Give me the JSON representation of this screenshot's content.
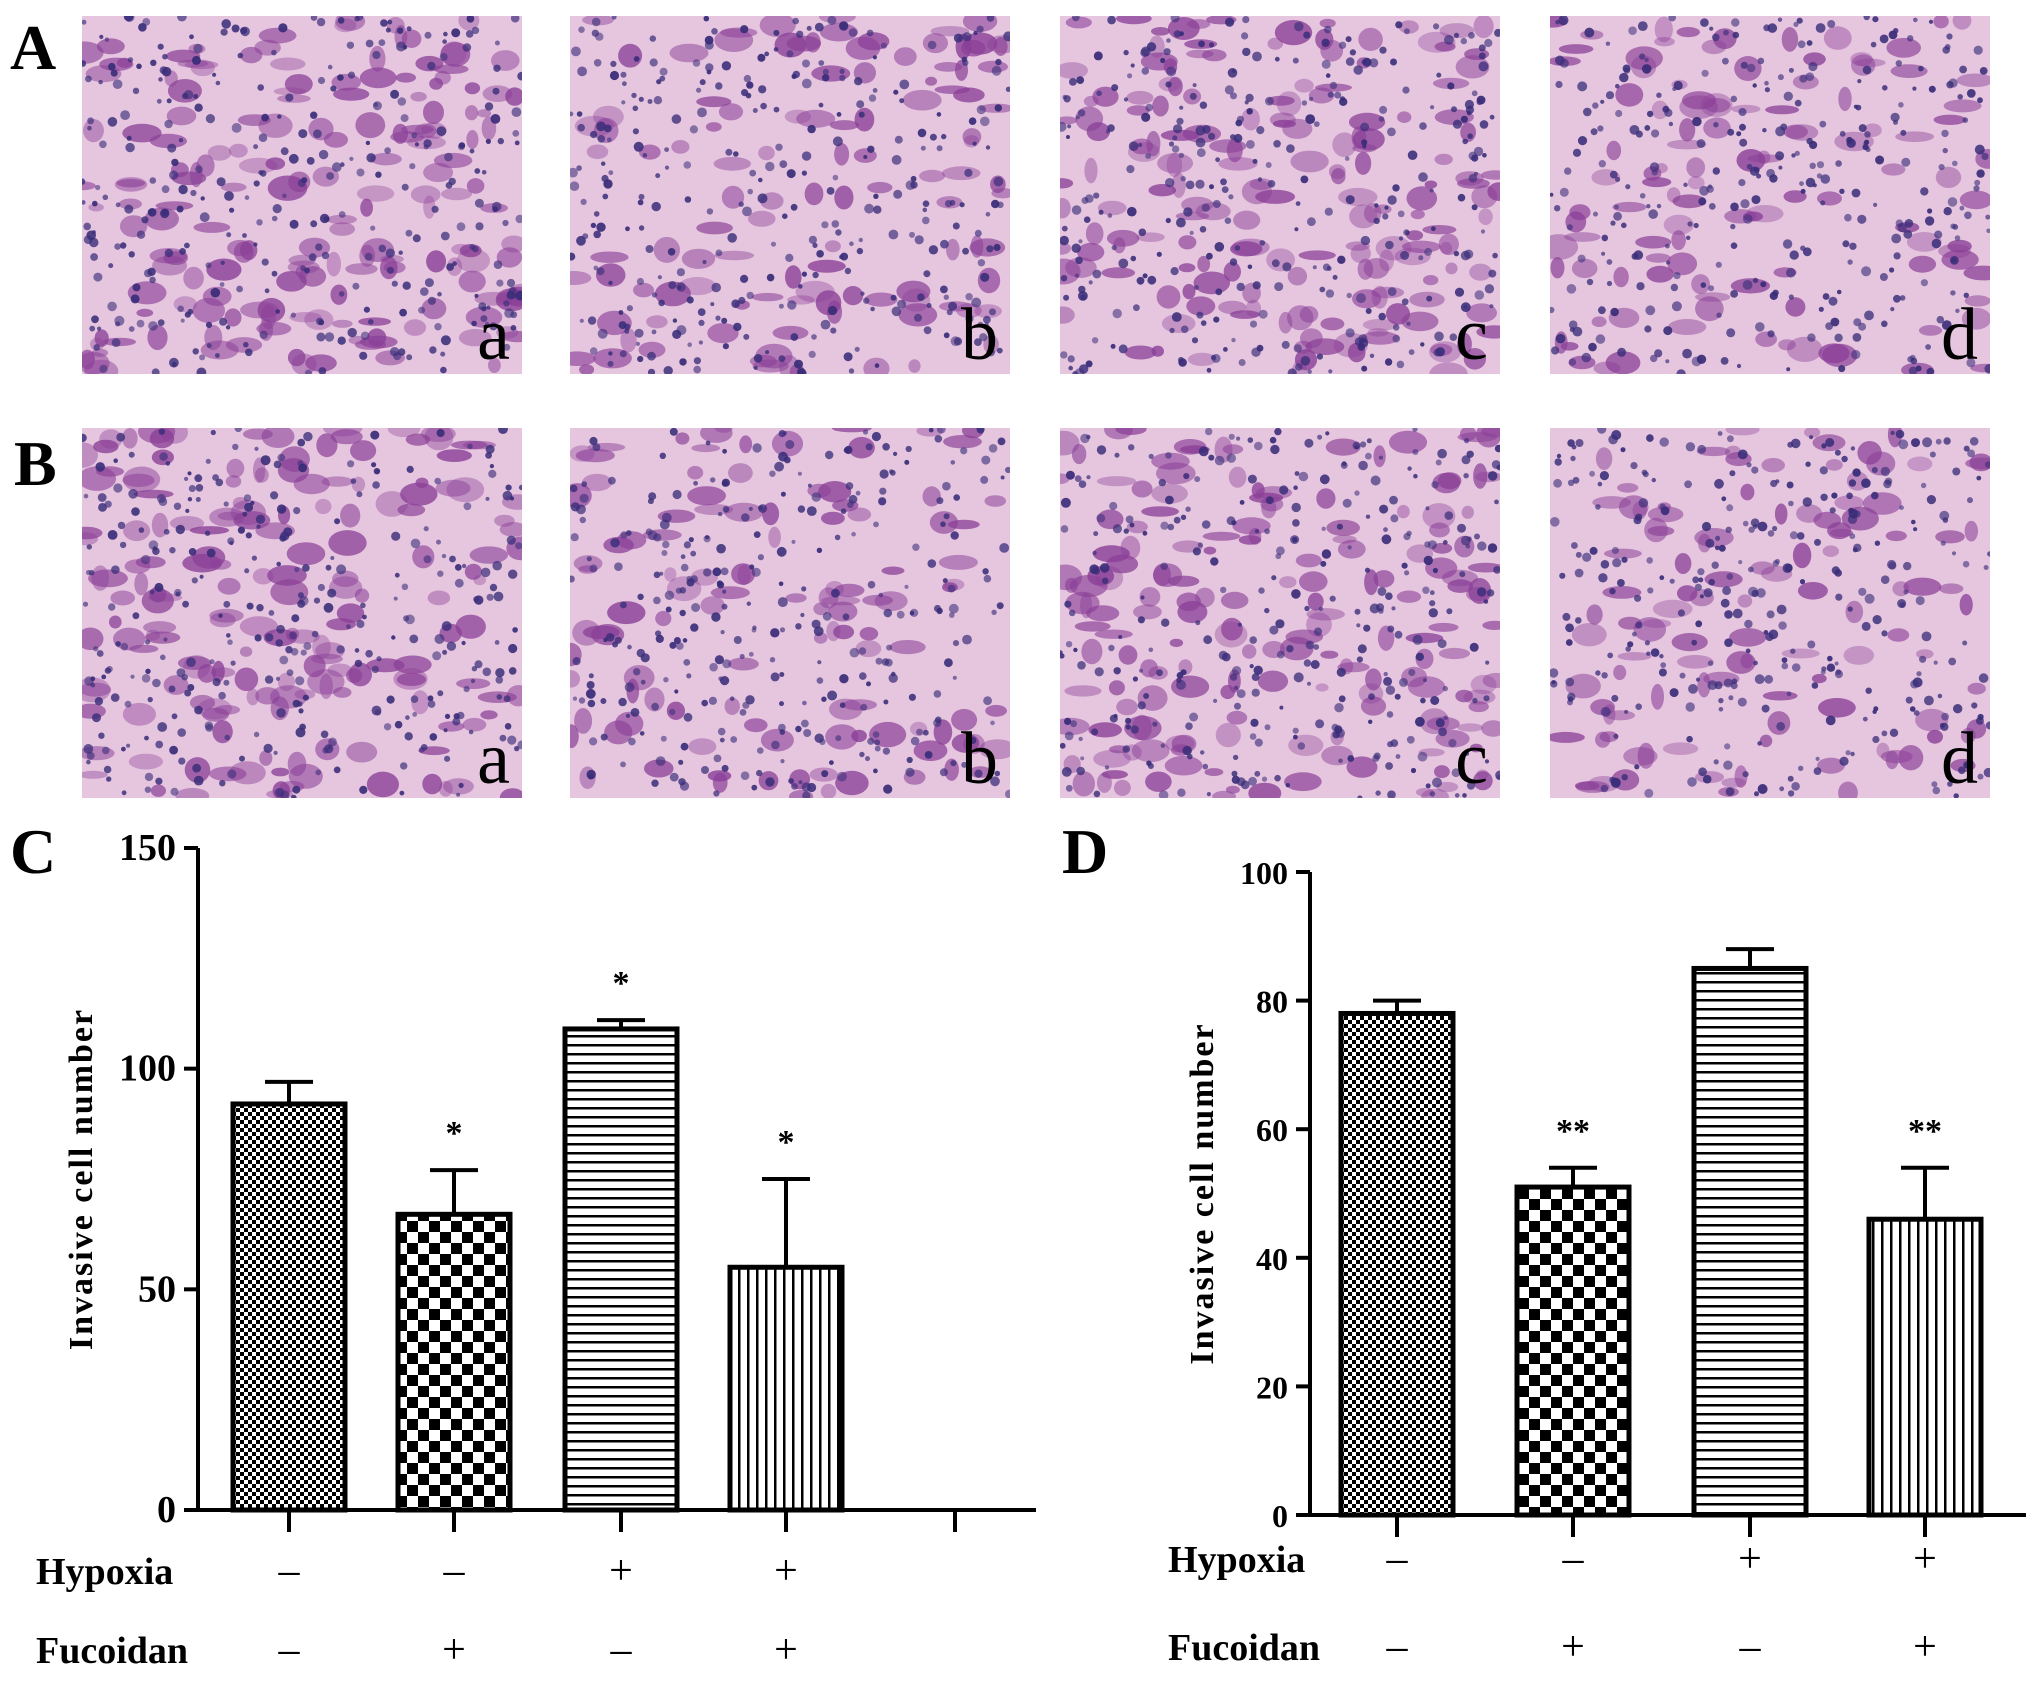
{
  "panels": {
    "A": {
      "letter": "A",
      "images": [
        "a",
        "b",
        "c",
        "d"
      ]
    },
    "B": {
      "letter": "B",
      "images": [
        "a",
        "b",
        "c",
        "d"
      ]
    },
    "C": {
      "letter": "C"
    },
    "D": {
      "letter": "D"
    }
  },
  "colors": {
    "stain_background": "#e6c6df",
    "stain_cell": "#8a3f97",
    "stain_nucleus": "#3a2d79",
    "bar_stroke": "#000000"
  },
  "chart_data": [
    {
      "id": "C",
      "type": "bar",
      "ylabel": "Invasive cell number",
      "ylim": [
        0,
        150
      ],
      "yticks": [
        "0",
        "50",
        "100",
        "150"
      ],
      "bars": [
        {
          "value": 92,
          "error": 5,
          "pattern": "fine-checker",
          "sig": ""
        },
        {
          "value": 67,
          "error": 10,
          "pattern": "checker",
          "sig": "*"
        },
        {
          "value": 109,
          "error": 2,
          "pattern": "horizontal-lines",
          "sig": "*"
        },
        {
          "value": 55,
          "error": 20,
          "pattern": "vertical-lines",
          "sig": "*"
        }
      ],
      "extra_tick": true,
      "conditions": [
        {
          "label": "Hypoxia",
          "values": [
            "–",
            "–",
            "+",
            "+"
          ]
        },
        {
          "label": "Fucoidan",
          "values": [
            "–",
            "+",
            "–",
            "+"
          ]
        }
      ]
    },
    {
      "id": "D",
      "type": "bar",
      "ylabel": "Invasive cell number",
      "ylim": [
        0,
        100
      ],
      "yticks": [
        "0",
        "20",
        "40",
        "60",
        "80",
        "100"
      ],
      "bars": [
        {
          "value": 78,
          "error": 2,
          "pattern": "fine-checker",
          "sig": ""
        },
        {
          "value": 51,
          "error": 3,
          "pattern": "checker",
          "sig": "**"
        },
        {
          "value": 85,
          "error": 3,
          "pattern": "horizontal-lines",
          "sig": ""
        },
        {
          "value": 46,
          "error": 8,
          "pattern": "vertical-lines",
          "sig": "**"
        }
      ],
      "extra_tick": false,
      "conditions": [
        {
          "label": "Hypoxia",
          "values": [
            "–",
            "–",
            "+",
            "+"
          ]
        },
        {
          "label": "Fucoidan",
          "values": [
            "–",
            "+",
            "–",
            "+"
          ]
        }
      ]
    }
  ]
}
